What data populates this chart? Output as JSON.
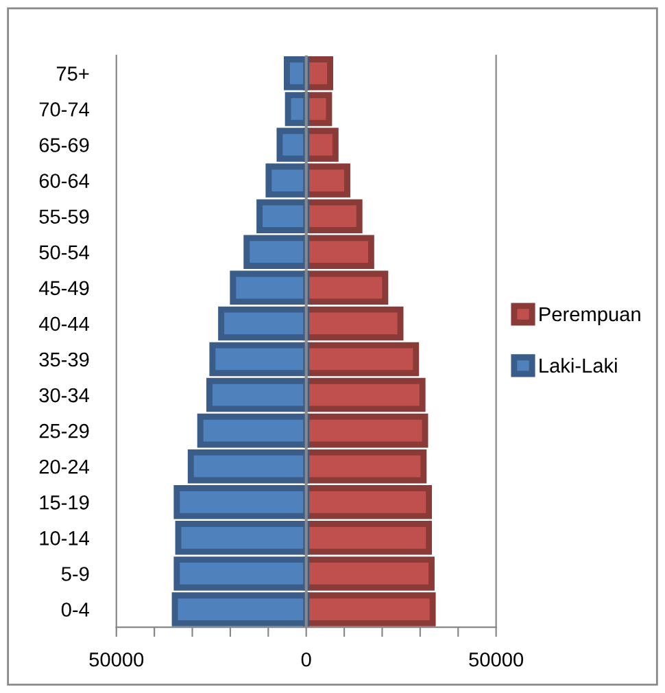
{
  "chart_data": {
    "type": "bar",
    "orientation": "horizontal",
    "stacked": true,
    "categories": [
      "75+",
      "70-74",
      "65-69",
      "60-64",
      "55-59",
      "50-54",
      "45-49",
      "40-44",
      "35-39",
      "30-34",
      "25-29",
      "20-24",
      "15-19",
      "10-14",
      "5-9",
      "0-4"
    ],
    "series": [
      {
        "name": "Perempuan",
        "color": "#c0504d",
        "values": [
          6300,
          6000,
          7700,
          10800,
          14000,
          17100,
          20800,
          24800,
          28900,
          30600,
          31300,
          30900,
          32300,
          32300,
          33000,
          33300
        ]
      },
      {
        "name": "Laki-Laki",
        "color": "#4f81bd",
        "values": [
          -5100,
          -4800,
          -7000,
          -9900,
          -12300,
          -15700,
          -19300,
          -22400,
          -24700,
          -25500,
          -27900,
          -30400,
          -34100,
          -33700,
          -34100,
          -34600
        ]
      }
    ],
    "xlim": [
      -50000,
      50000
    ],
    "xticks": [
      {
        "value": -50000,
        "label": "50000"
      },
      {
        "value": -40000,
        "label": null
      },
      {
        "value": -30000,
        "label": null
      },
      {
        "value": -20000,
        "label": null
      },
      {
        "value": -10000,
        "label": null
      },
      0,
      {
        "value": 10000,
        "label": null
      },
      {
        "value": 20000,
        "label": null
      },
      {
        "value": 30000,
        "label": null
      },
      {
        "value": 40000,
        "label": null
      },
      50000
    ],
    "legend": "right"
  }
}
